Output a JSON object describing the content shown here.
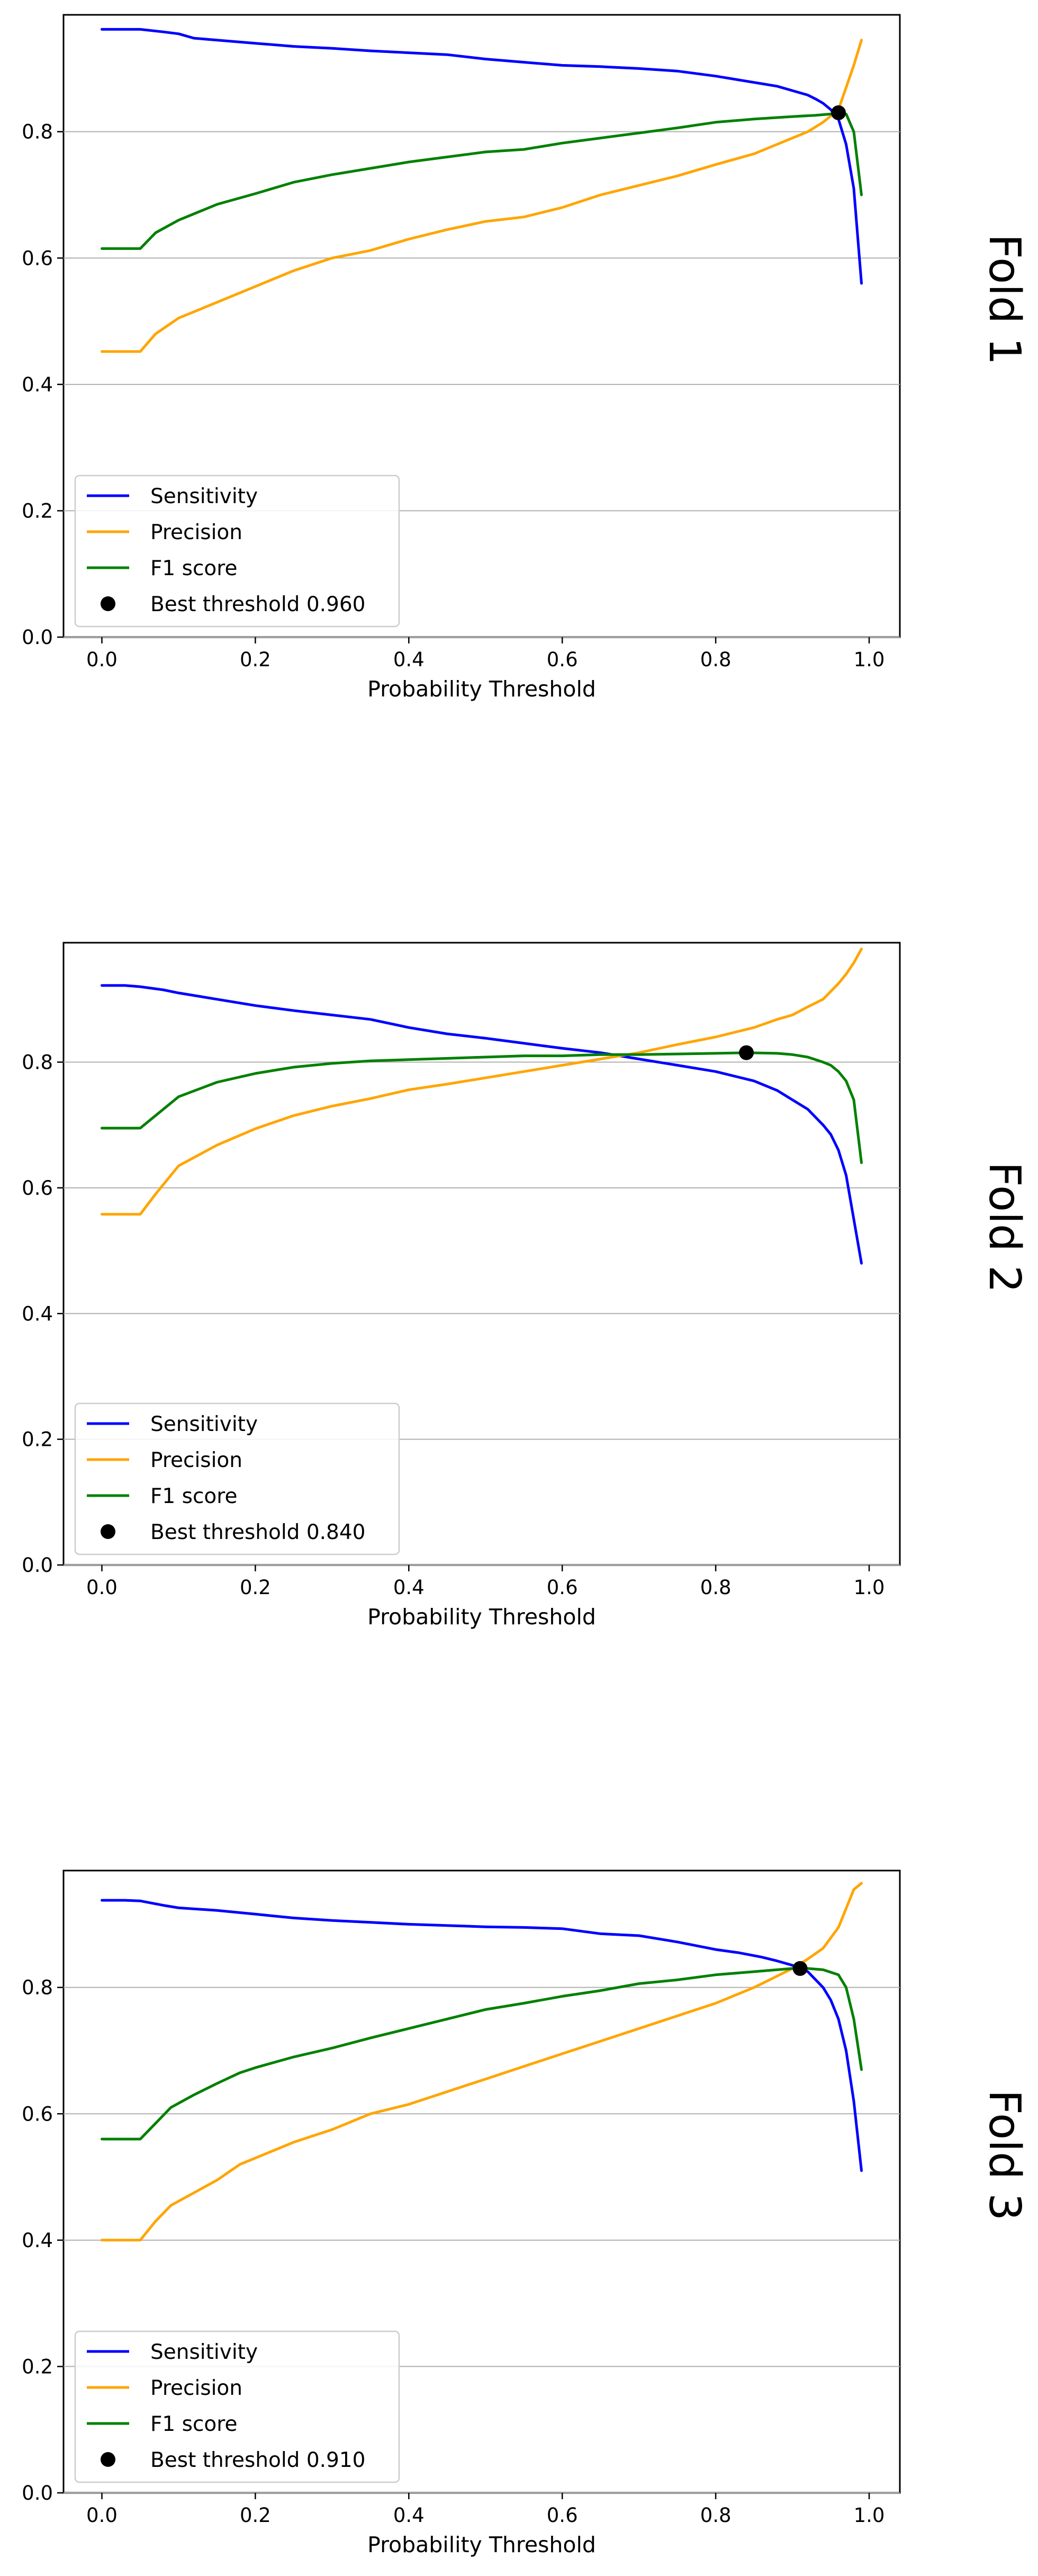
{
  "chart_data": [
    {
      "type": "line",
      "side_label": "Fold 1",
      "xlabel": "Probability Threshold",
      "xlim": [
        -0.05,
        1.04
      ],
      "ylim": [
        0.0,
        0.985
      ],
      "xticks": [
        0.0,
        0.2,
        0.4,
        0.6,
        0.8,
        1.0
      ],
      "xtick_labels": [
        "0.0",
        "0.2",
        "0.4",
        "0.6",
        "0.8",
        "1.0"
      ],
      "yticks": [
        0.0,
        0.2,
        0.4,
        0.6,
        0.8
      ],
      "ytick_labels": [
        "0.0",
        "0.2",
        "0.4",
        "0.6",
        "0.8"
      ],
      "grid": "y",
      "legend_position": "lower-left",
      "series": [
        {
          "name": "Sensitivity",
          "color": "#0000ff",
          "x": [
            0.0,
            0.03,
            0.05,
            0.08,
            0.1,
            0.12,
            0.15,
            0.2,
            0.25,
            0.3,
            0.35,
            0.4,
            0.45,
            0.5,
            0.55,
            0.6,
            0.65,
            0.7,
            0.75,
            0.8,
            0.83,
            0.86,
            0.88,
            0.9,
            0.92,
            0.93,
            0.94,
            0.95,
            0.96,
            0.97,
            0.98,
            0.99
          ],
          "y": [
            0.962,
            0.962,
            0.962,
            0.958,
            0.955,
            0.948,
            0.945,
            0.94,
            0.935,
            0.932,
            0.928,
            0.925,
            0.922,
            0.915,
            0.91,
            0.905,
            0.903,
            0.9,
            0.896,
            0.888,
            0.882,
            0.876,
            0.872,
            0.865,
            0.858,
            0.852,
            0.845,
            0.835,
            0.82,
            0.78,
            0.71,
            0.56
          ]
        },
        {
          "name": "Precision",
          "color": "#ffa500",
          "x": [
            0.0,
            0.03,
            0.05,
            0.07,
            0.1,
            0.15,
            0.2,
            0.25,
            0.3,
            0.35,
            0.4,
            0.45,
            0.5,
            0.55,
            0.6,
            0.65,
            0.7,
            0.75,
            0.8,
            0.85,
            0.88,
            0.9,
            0.92,
            0.94,
            0.96,
            0.97,
            0.98,
            0.99
          ],
          "y": [
            0.452,
            0.452,
            0.452,
            0.48,
            0.505,
            0.53,
            0.555,
            0.58,
            0.6,
            0.612,
            0.63,
            0.645,
            0.658,
            0.665,
            0.68,
            0.7,
            0.715,
            0.73,
            0.748,
            0.765,
            0.78,
            0.79,
            0.8,
            0.815,
            0.835,
            0.87,
            0.905,
            0.945
          ]
        },
        {
          "name": "F1 score",
          "color": "#008000",
          "x": [
            0.0,
            0.03,
            0.05,
            0.07,
            0.1,
            0.15,
            0.2,
            0.25,
            0.3,
            0.35,
            0.4,
            0.45,
            0.5,
            0.55,
            0.6,
            0.65,
            0.7,
            0.75,
            0.8,
            0.85,
            0.9,
            0.93,
            0.95,
            0.96,
            0.97,
            0.98,
            0.99
          ],
          "y": [
            0.615,
            0.615,
            0.615,
            0.64,
            0.66,
            0.685,
            0.702,
            0.72,
            0.732,
            0.742,
            0.752,
            0.76,
            0.768,
            0.772,
            0.782,
            0.79,
            0.798,
            0.806,
            0.815,
            0.82,
            0.824,
            0.826,
            0.828,
            0.83,
            0.828,
            0.8,
            0.7
          ]
        }
      ],
      "best_point": {
        "x": 0.96,
        "y": 0.83,
        "color": "#000000"
      },
      "legend": [
        "Sensitivity",
        "Precision",
        "F1 score",
        "Best threshold 0.960"
      ]
    },
    {
      "type": "line",
      "side_label": "Fold 2",
      "xlabel": "Probability Threshold",
      "xlim": [
        -0.05,
        1.04
      ],
      "ylim": [
        0.0,
        0.99
      ],
      "xticks": [
        0.0,
        0.2,
        0.4,
        0.6,
        0.8,
        1.0
      ],
      "xtick_labels": [
        "0.0",
        "0.2",
        "0.4",
        "0.6",
        "0.8",
        "1.0"
      ],
      "yticks": [
        0.0,
        0.2,
        0.4,
        0.6,
        0.8
      ],
      "ytick_labels": [
        "0.0",
        "0.2",
        "0.4",
        "0.6",
        "0.8"
      ],
      "grid": "y",
      "legend_position": "lower-left",
      "series": [
        {
          "name": "Sensitivity",
          "color": "#0000ff",
          "x": [
            0.0,
            0.03,
            0.05,
            0.08,
            0.1,
            0.15,
            0.2,
            0.25,
            0.3,
            0.35,
            0.4,
            0.45,
            0.5,
            0.55,
            0.6,
            0.65,
            0.7,
            0.75,
            0.8,
            0.85,
            0.88,
            0.9,
            0.92,
            0.94,
            0.95,
            0.96,
            0.97,
            0.98,
            0.99
          ],
          "y": [
            0.922,
            0.922,
            0.92,
            0.915,
            0.91,
            0.9,
            0.89,
            0.882,
            0.875,
            0.868,
            0.855,
            0.845,
            0.838,
            0.83,
            0.822,
            0.815,
            0.805,
            0.795,
            0.785,
            0.77,
            0.755,
            0.74,
            0.725,
            0.7,
            0.685,
            0.66,
            0.62,
            0.55,
            0.48
          ]
        },
        {
          "name": "Precision",
          "color": "#ffa500",
          "x": [
            0.0,
            0.03,
            0.05,
            0.07,
            0.1,
            0.15,
            0.2,
            0.25,
            0.3,
            0.35,
            0.4,
            0.45,
            0.5,
            0.55,
            0.6,
            0.65,
            0.7,
            0.75,
            0.8,
            0.85,
            0.88,
            0.9,
            0.92,
            0.94,
            0.96,
            0.97,
            0.98,
            0.99
          ],
          "y": [
            0.558,
            0.558,
            0.558,
            0.59,
            0.635,
            0.668,
            0.694,
            0.715,
            0.73,
            0.742,
            0.756,
            0.765,
            0.775,
            0.785,
            0.795,
            0.805,
            0.815,
            0.828,
            0.84,
            0.855,
            0.868,
            0.875,
            0.888,
            0.9,
            0.925,
            0.94,
            0.958,
            0.98
          ]
        },
        {
          "name": "F1 score",
          "color": "#008000",
          "x": [
            0.0,
            0.03,
            0.05,
            0.07,
            0.1,
            0.15,
            0.2,
            0.25,
            0.3,
            0.35,
            0.4,
            0.45,
            0.5,
            0.55,
            0.6,
            0.65,
            0.7,
            0.75,
            0.8,
            0.84,
            0.88,
            0.9,
            0.92,
            0.94,
            0.95,
            0.96,
            0.97,
            0.98,
            0.99
          ],
          "y": [
            0.695,
            0.695,
            0.695,
            0.715,
            0.745,
            0.768,
            0.782,
            0.792,
            0.798,
            0.802,
            0.804,
            0.806,
            0.808,
            0.81,
            0.81,
            0.812,
            0.812,
            0.813,
            0.814,
            0.815,
            0.814,
            0.812,
            0.808,
            0.8,
            0.795,
            0.785,
            0.77,
            0.74,
            0.64
          ]
        }
      ],
      "best_point": {
        "x": 0.84,
        "y": 0.815,
        "color": "#000000"
      },
      "legend": [
        "Sensitivity",
        "Precision",
        "F1 score",
        "Best threshold 0.840"
      ]
    },
    {
      "type": "line",
      "side_label": "Fold 3",
      "xlabel": "Probability Threshold",
      "xlim": [
        -0.05,
        1.04
      ],
      "ylim": [
        0.0,
        0.985
      ],
      "xticks": [
        0.0,
        0.2,
        0.4,
        0.6,
        0.8,
        1.0
      ],
      "xtick_labels": [
        "0.0",
        "0.2",
        "0.4",
        "0.6",
        "0.8",
        "1.0"
      ],
      "yticks": [
        0.0,
        0.2,
        0.4,
        0.6,
        0.8
      ],
      "ytick_labels": [
        "0.0",
        "0.2",
        "0.4",
        "0.6",
        "0.8"
      ],
      "grid": "y",
      "legend_position": "lower-left",
      "series": [
        {
          "name": "Sensitivity",
          "color": "#0000ff",
          "x": [
            0.0,
            0.03,
            0.05,
            0.08,
            0.1,
            0.15,
            0.2,
            0.25,
            0.3,
            0.35,
            0.4,
            0.45,
            0.5,
            0.55,
            0.6,
            0.65,
            0.7,
            0.75,
            0.8,
            0.83,
            0.86,
            0.88,
            0.9,
            0.91,
            0.92,
            0.94,
            0.95,
            0.96,
            0.97,
            0.98,
            0.99
          ],
          "y": [
            0.938,
            0.938,
            0.937,
            0.93,
            0.926,
            0.922,
            0.916,
            0.91,
            0.906,
            0.903,
            0.9,
            0.898,
            0.896,
            0.895,
            0.893,
            0.885,
            0.882,
            0.872,
            0.86,
            0.855,
            0.848,
            0.842,
            0.835,
            0.83,
            0.825,
            0.8,
            0.78,
            0.75,
            0.7,
            0.62,
            0.51
          ]
        },
        {
          "name": "Precision",
          "color": "#ffa500",
          "x": [
            0.0,
            0.03,
            0.05,
            0.07,
            0.09,
            0.12,
            0.15,
            0.18,
            0.2,
            0.25,
            0.3,
            0.35,
            0.4,
            0.45,
            0.5,
            0.55,
            0.6,
            0.65,
            0.7,
            0.75,
            0.8,
            0.85,
            0.88,
            0.9,
            0.92,
            0.94,
            0.96,
            0.97,
            0.98,
            0.99
          ],
          "y": [
            0.4,
            0.4,
            0.4,
            0.43,
            0.455,
            0.475,
            0.495,
            0.52,
            0.53,
            0.555,
            0.575,
            0.6,
            0.615,
            0.635,
            0.655,
            0.675,
            0.695,
            0.715,
            0.735,
            0.755,
            0.775,
            0.8,
            0.818,
            0.83,
            0.845,
            0.862,
            0.895,
            0.925,
            0.955,
            0.965
          ]
        },
        {
          "name": "F1 score",
          "color": "#008000",
          "x": [
            0.0,
            0.03,
            0.05,
            0.07,
            0.09,
            0.12,
            0.15,
            0.18,
            0.2,
            0.25,
            0.3,
            0.35,
            0.4,
            0.45,
            0.5,
            0.55,
            0.6,
            0.65,
            0.7,
            0.75,
            0.8,
            0.85,
            0.88,
            0.9,
            0.92,
            0.94,
            0.96,
            0.97,
            0.98,
            0.99
          ],
          "y": [
            0.56,
            0.56,
            0.56,
            0.585,
            0.61,
            0.63,
            0.648,
            0.665,
            0.673,
            0.69,
            0.704,
            0.72,
            0.735,
            0.75,
            0.765,
            0.775,
            0.786,
            0.795,
            0.806,
            0.812,
            0.82,
            0.825,
            0.828,
            0.83,
            0.83,
            0.828,
            0.82,
            0.8,
            0.75,
            0.67
          ]
        }
      ],
      "best_point": {
        "x": 0.91,
        "y": 0.83,
        "color": "#000000"
      },
      "legend": [
        "Sensitivity",
        "Precision",
        "F1 score",
        "Best threshold 0.910"
      ]
    }
  ]
}
